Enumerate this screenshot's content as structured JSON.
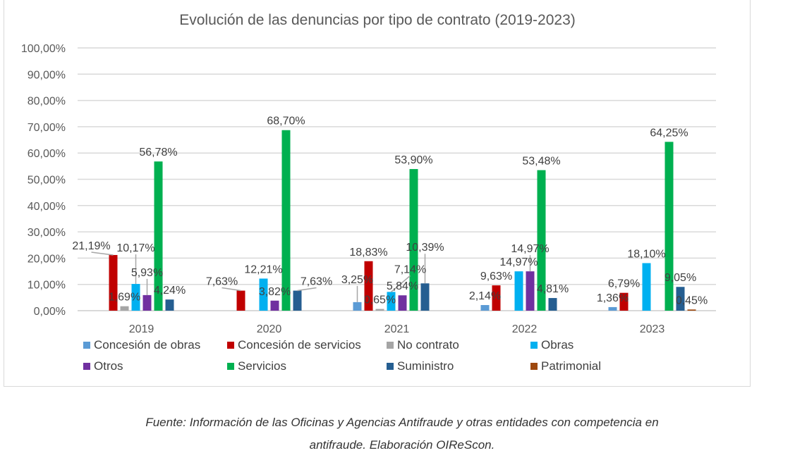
{
  "chart_data": {
    "type": "bar",
    "title": "Evolución de las denuncias  por tipo de contrato (2019-2023)",
    "categories": [
      "2019",
      "2020",
      "2021",
      "2022",
      "2023"
    ],
    "ylim": [
      0,
      100
    ],
    "yticks": [
      "0,00%",
      "10,00%",
      "20,00%",
      "30,00%",
      "40,00%",
      "50,00%",
      "60,00%",
      "70,00%",
      "80,00%",
      "90,00%",
      "100,00%"
    ],
    "grid": true,
    "legend": "bottom",
    "series": [
      {
        "name": "Concesión de obras",
        "color": "#5b9bd5",
        "values": [
          null,
          null,
          3.25,
          2.14,
          1.36
        ],
        "labels": [
          "",
          "",
          "3,25%",
          "2,14%",
          "1,36%"
        ]
      },
      {
        "name": "Concesión de servicios",
        "color": "#c00000",
        "values": [
          21.19,
          7.63,
          18.83,
          9.63,
          6.79
        ],
        "labels": [
          "21,19%",
          "7,63%",
          "18,83%",
          "9,63%",
          "6,79%"
        ]
      },
      {
        "name": "No contrato",
        "color": "#a5a5a5",
        "values": [
          1.69,
          null,
          0.65,
          null,
          null
        ],
        "labels": [
          "1,69%",
          "",
          "0,65%",
          "",
          ""
        ]
      },
      {
        "name": "Obras",
        "color": "#00b0f0",
        "values": [
          10.17,
          12.21,
          7.14,
          14.97,
          18.1
        ],
        "labels": [
          "10,17%",
          "12,21%",
          "7,14%",
          "14,97%",
          "18,10%"
        ]
      },
      {
        "name": "Otros",
        "color": "#7030a0",
        "values": [
          5.93,
          3.82,
          5.84,
          14.97,
          null
        ],
        "labels": [
          "5,93%",
          "3,82%",
          "5,84%",
          "14,97%",
          ""
        ]
      },
      {
        "name": "Servicios",
        "color": "#00b050",
        "values": [
          56.78,
          68.7,
          53.9,
          53.48,
          64.25
        ],
        "labels": [
          "56,78%",
          "68,70%",
          "53,90%",
          "53,48%",
          "64,25%"
        ]
      },
      {
        "name": "Suministro",
        "color": "#255e91",
        "values": [
          4.24,
          7.63,
          10.39,
          4.81,
          9.05
        ],
        "labels": [
          "4,24%",
          "7,63%",
          "10,39%",
          "4,81%",
          "9,05%"
        ]
      },
      {
        "name": "Patrimonial",
        "color": "#9e480e",
        "values": [
          null,
          null,
          null,
          null,
          0.45
        ],
        "labels": [
          "",
          "",
          "",
          "",
          "0,45%"
        ]
      }
    ]
  },
  "caption": {
    "line1": "Fuente: Información de las Oficinas y Agencias Antifraude y otras entidades con competencia en",
    "line2": "antifraude. Elaboración OIReScon."
  }
}
